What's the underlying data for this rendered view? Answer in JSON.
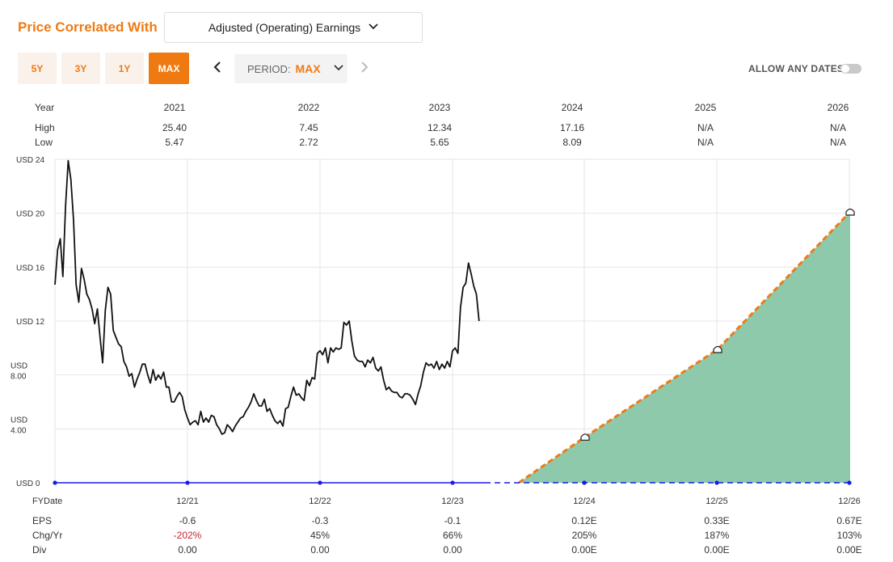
{
  "header": {
    "title": "Price Correlated With",
    "metric_select": "Adjusted (Operating) Earnings",
    "range_buttons": [
      "5Y",
      "3Y",
      "1Y",
      "MAX"
    ],
    "active_range": "MAX",
    "period_label": "PERIOD:",
    "period_value": "MAX",
    "allow_any_dates": "ALLOW ANY DATES",
    "allow_any_dates_on": false
  },
  "price_table": {
    "row_labels": [
      "Year",
      "High",
      "Low"
    ],
    "years": [
      "2021",
      "2022",
      "2023",
      "2024",
      "2025",
      "2026"
    ],
    "high": [
      "25.40",
      "7.45",
      "12.34",
      "17.16",
      "N/A",
      "N/A"
    ],
    "low": [
      "5.47",
      "2.72",
      "5.65",
      "8.09",
      "N/A",
      "N/A"
    ]
  },
  "chart_data": {
    "type": "line",
    "y_ticks": [
      "USD 24",
      "USD 20",
      "USD 16",
      "USD 12",
      "USD 8.00",
      "USD 4.00",
      "USD 0"
    ],
    "y_tick_values": [
      24,
      20,
      16,
      12,
      8,
      4,
      0
    ],
    "ylim": [
      0,
      24
    ],
    "x_label": "FYDate",
    "x_ticks": [
      "12/21",
      "12/22",
      "12/23",
      "12/24",
      "12/25",
      "12/26"
    ],
    "grid": true,
    "colors": {
      "price": "#111111",
      "earnings_area": "#8ec9ab",
      "earnings_line": "#f07a12",
      "baseline": "#1a1aee"
    },
    "price_series": {
      "name": "",
      "x_unit": "years since start of FY2021",
      "points": [
        [
          0.0,
          14.7
        ],
        [
          0.02,
          17.3
        ],
        [
          0.04,
          18.1
        ],
        [
          0.06,
          15.3
        ],
        [
          0.08,
          20.5
        ],
        [
          0.1,
          23.9
        ],
        [
          0.12,
          22.5
        ],
        [
          0.14,
          19.5
        ],
        [
          0.16,
          14.7
        ],
        [
          0.18,
          13.4
        ],
        [
          0.2,
          15.9
        ],
        [
          0.22,
          15.1
        ],
        [
          0.24,
          14.0
        ],
        [
          0.26,
          13.6
        ],
        [
          0.28,
          12.9
        ],
        [
          0.3,
          11.8
        ],
        [
          0.32,
          12.9
        ],
        [
          0.34,
          10.8
        ],
        [
          0.36,
          8.9
        ],
        [
          0.38,
          12.8
        ],
        [
          0.4,
          14.5
        ],
        [
          0.42,
          14.0
        ],
        [
          0.44,
          11.3
        ],
        [
          0.46,
          10.8
        ],
        [
          0.48,
          10.3
        ],
        [
          0.5,
          10.1
        ],
        [
          0.52,
          9.0
        ],
        [
          0.54,
          8.6
        ],
        [
          0.56,
          7.9
        ],
        [
          0.58,
          8.1
        ],
        [
          0.6,
          7.1
        ],
        [
          0.62,
          7.7
        ],
        [
          0.64,
          8.2
        ],
        [
          0.66,
          8.8
        ],
        [
          0.68,
          8.8
        ],
        [
          0.7,
          8.0
        ],
        [
          0.72,
          7.4
        ],
        [
          0.74,
          8.4
        ],
        [
          0.76,
          7.6
        ],
        [
          0.78,
          8.0
        ],
        [
          0.8,
          7.7
        ],
        [
          0.82,
          8.2
        ],
        [
          0.84,
          7.1
        ],
        [
          0.86,
          7.1
        ],
        [
          0.88,
          6.0
        ],
        [
          0.9,
          6.0
        ],
        [
          0.92,
          6.4
        ],
        [
          0.94,
          6.7
        ],
        [
          0.96,
          6.4
        ],
        [
          0.98,
          5.4
        ],
        [
          1.0,
          4.8
        ],
        [
          1.02,
          4.3
        ],
        [
          1.04,
          4.5
        ],
        [
          1.06,
          4.6
        ],
        [
          1.08,
          4.3
        ],
        [
          1.1,
          5.3
        ],
        [
          1.12,
          4.5
        ],
        [
          1.14,
          4.8
        ],
        [
          1.16,
          4.5
        ],
        [
          1.18,
          5.0
        ],
        [
          1.2,
          4.9
        ],
        [
          1.22,
          4.3
        ],
        [
          1.24,
          4.0
        ],
        [
          1.26,
          3.6
        ],
        [
          1.28,
          3.7
        ],
        [
          1.3,
          4.3
        ],
        [
          1.32,
          4.1
        ],
        [
          1.34,
          3.8
        ],
        [
          1.36,
          4.2
        ],
        [
          1.38,
          4.5
        ],
        [
          1.4,
          4.8
        ],
        [
          1.42,
          4.9
        ],
        [
          1.44,
          5.3
        ],
        [
          1.46,
          5.6
        ],
        [
          1.48,
          6.0
        ],
        [
          1.5,
          6.6
        ],
        [
          1.52,
          6.1
        ],
        [
          1.54,
          5.7
        ],
        [
          1.56,
          5.7
        ],
        [
          1.58,
          6.2
        ],
        [
          1.6,
          5.3
        ],
        [
          1.62,
          5.5
        ],
        [
          1.64,
          5.0
        ],
        [
          1.66,
          4.6
        ],
        [
          1.68,
          4.4
        ],
        [
          1.7,
          4.6
        ],
        [
          1.72,
          4.2
        ],
        [
          1.74,
          5.5
        ],
        [
          1.76,
          5.6
        ],
        [
          1.78,
          6.4
        ],
        [
          1.8,
          7.1
        ],
        [
          1.82,
          6.5
        ],
        [
          1.84,
          6.6
        ],
        [
          1.86,
          6.3
        ],
        [
          1.88,
          6.1
        ],
        [
          1.9,
          7.6
        ],
        [
          1.92,
          7.2
        ],
        [
          1.94,
          7.8
        ],
        [
          1.96,
          7.7
        ],
        [
          1.98,
          9.6
        ],
        [
          2.0,
          9.8
        ],
        [
          2.02,
          9.5
        ],
        [
          2.04,
          10.0
        ],
        [
          2.06,
          8.9
        ],
        [
          2.08,
          10.0
        ],
        [
          2.1,
          9.7
        ],
        [
          2.12,
          10.0
        ],
        [
          2.14,
          9.9
        ],
        [
          2.16,
          10.0
        ],
        [
          2.18,
          11.9
        ],
        [
          2.2,
          11.7
        ],
        [
          2.22,
          12.0
        ],
        [
          2.24,
          10.5
        ],
        [
          2.26,
          9.4
        ],
        [
          2.28,
          9.1
        ],
        [
          2.3,
          9.0
        ],
        [
          2.32,
          9.0
        ],
        [
          2.34,
          8.6
        ],
        [
          2.36,
          9.1
        ],
        [
          2.38,
          8.9
        ],
        [
          2.4,
          9.3
        ],
        [
          2.42,
          8.5
        ],
        [
          2.44,
          8.3
        ],
        [
          2.46,
          8.6
        ],
        [
          2.48,
          7.6
        ],
        [
          2.5,
          6.9
        ],
        [
          2.52,
          7.1
        ],
        [
          2.54,
          6.8
        ],
        [
          2.56,
          6.7
        ],
        [
          2.58,
          6.7
        ],
        [
          2.6,
          6.4
        ],
        [
          2.62,
          6.3
        ],
        [
          2.64,
          6.6
        ],
        [
          2.66,
          6.6
        ],
        [
          2.68,
          6.5
        ],
        [
          2.7,
          6.2
        ],
        [
          2.72,
          5.8
        ],
        [
          2.74,
          6.6
        ],
        [
          2.76,
          7.2
        ],
        [
          2.78,
          8.2
        ],
        [
          2.8,
          8.9
        ],
        [
          2.82,
          8.7
        ],
        [
          2.84,
          8.8
        ],
        [
          2.86,
          8.5
        ],
        [
          2.88,
          9.0
        ],
        [
          2.9,
          8.4
        ],
        [
          2.92,
          8.8
        ],
        [
          2.94,
          8.5
        ],
        [
          2.96,
          9.0
        ],
        [
          2.98,
          8.6
        ],
        [
          3.0,
          9.8
        ],
        [
          3.02,
          10.0
        ],
        [
          3.04,
          9.6
        ],
        [
          3.06,
          13.0
        ],
        [
          3.08,
          14.5
        ],
        [
          3.1,
          14.8
        ],
        [
          3.12,
          16.3
        ],
        [
          3.14,
          15.5
        ],
        [
          3.16,
          14.6
        ],
        [
          3.18,
          14.0
        ],
        [
          3.2,
          12.0
        ]
      ]
    },
    "earnings_series": {
      "name": "",
      "start_x": 3.5,
      "points": [
        [
          3.5,
          0
        ],
        [
          4,
          3.4
        ],
        [
          5,
          9.9
        ],
        [
          6,
          20.1
        ]
      ]
    },
    "markers": [
      [
        4,
        3.4
      ],
      [
        5,
        9.9
      ],
      [
        6,
        20.1
      ]
    ]
  },
  "eps_table": {
    "row_labels": [
      "EPS",
      "Chg/Yr",
      "Div"
    ],
    "eps": [
      "-0.6",
      "-0.3",
      "-0.1",
      "0.12E",
      "0.33E",
      "0.67E"
    ],
    "chg": [
      "-202%",
      "45%",
      "66%",
      "205%",
      "187%",
      "103%"
    ],
    "div": [
      "0.00",
      "0.00",
      "0.00",
      "0.00E",
      "0.00E",
      "0.00E"
    ],
    "negative_color": "#cc1f2d"
  }
}
